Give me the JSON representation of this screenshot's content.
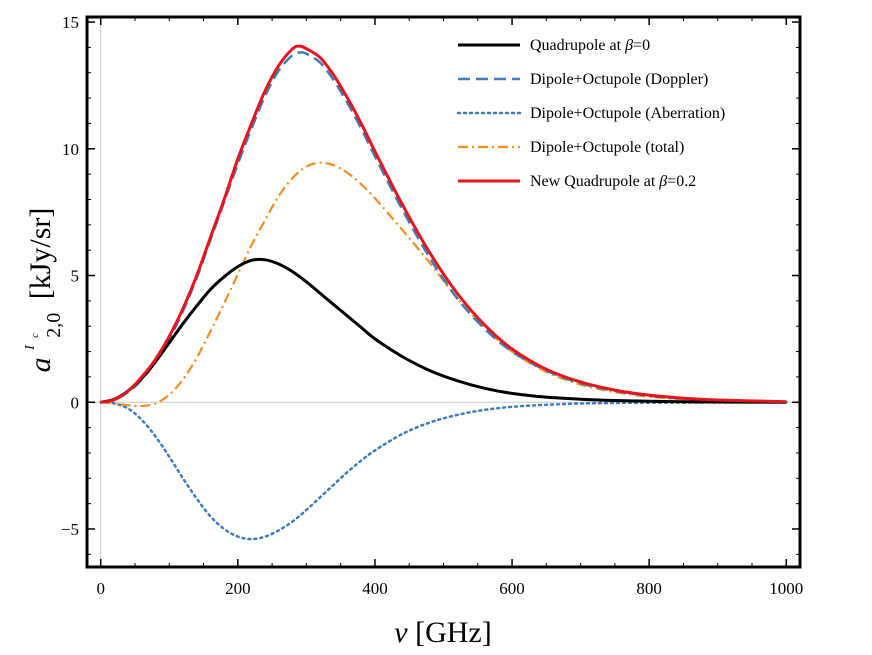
{
  "chart_data": {
    "type": "line",
    "title": "",
    "xlabel": "ν [GHz]",
    "ylabel": "a^{I_c}_{2,0} [kJy/sr]",
    "ylabel_parts": {
      "symbol": "a",
      "sup": "I",
      "sup_sub": "c",
      "sub": "2,0",
      "unit": "[kJy/sr]"
    },
    "xlabel_parts": {
      "symbol": "ν",
      "unit": "[GHz]"
    },
    "xlim": [
      -20,
      1020
    ],
    "ylim": [
      -6.5,
      15.2
    ],
    "xticks": [
      0,
      200,
      400,
      600,
      800,
      1000
    ],
    "xtick_labels": [
      "0",
      "200",
      "400",
      "600",
      "800",
      "1000"
    ],
    "yticks": [
      -5,
      0,
      5,
      10,
      15
    ],
    "ytick_labels": [
      "−5",
      "0",
      "5",
      "10",
      "15"
    ],
    "grid": false,
    "legend_position": "top-right",
    "series": [
      {
        "name": "Quadrupole at β=0",
        "legend": {
          "prefix": "Quadrupole at ",
          "greek": "β",
          "suffix": "=0"
        },
        "color": "#000000",
        "dash": "solid",
        "x": [
          0,
          20,
          40,
          60,
          80,
          100,
          120,
          140,
          160,
          180,
          200,
          220,
          240,
          260,
          280,
          300,
          320,
          340,
          360,
          380,
          400,
          440,
          480,
          520,
          560,
          600,
          650,
          700,
          750,
          800,
          850,
          900,
          1000
        ],
        "y": [
          0,
          0.12,
          0.45,
          0.95,
          1.6,
          2.35,
          3.1,
          3.8,
          4.45,
          4.95,
          5.35,
          5.6,
          5.62,
          5.45,
          5.15,
          4.75,
          4.3,
          3.85,
          3.4,
          2.95,
          2.5,
          1.8,
          1.25,
          0.85,
          0.55,
          0.35,
          0.2,
          0.12,
          0.07,
          0.04,
          0.02,
          0.01,
          0.0
        ]
      },
      {
        "name": "Dipole+Octupole (Doppler)",
        "legend": {
          "prefix": "Dipole+Octupole (Doppler)",
          "greek": "",
          "suffix": ""
        },
        "color": "#3F7CB8",
        "dash": "dashed",
        "x": [
          0,
          20,
          40,
          60,
          80,
          100,
          120,
          140,
          160,
          180,
          200,
          220,
          240,
          260,
          280,
          290,
          300,
          320,
          340,
          360,
          380,
          400,
          440,
          480,
          520,
          560,
          600,
          650,
          700,
          750,
          800,
          850,
          900,
          1000
        ],
        "y": [
          0,
          0.1,
          0.4,
          0.9,
          1.6,
          2.5,
          3.6,
          4.9,
          6.4,
          7.9,
          9.4,
          10.8,
          12.1,
          13.1,
          13.7,
          13.8,
          13.75,
          13.4,
          12.7,
          11.8,
          10.8,
          9.7,
          7.6,
          5.7,
          4.1,
          2.9,
          2.0,
          1.25,
          0.75,
          0.45,
          0.25,
          0.14,
          0.08,
          0.02
        ]
      },
      {
        "name": "Dipole+Octupole (Aberration)",
        "legend": {
          "prefix": "Dipole+Octupole (Aberration)",
          "greek": "",
          "suffix": ""
        },
        "color": "#3F7CB8",
        "dash": "dotted",
        "x": [
          0,
          20,
          40,
          60,
          80,
          100,
          120,
          140,
          160,
          180,
          200,
          220,
          240,
          260,
          280,
          300,
          320,
          340,
          360,
          380,
          400,
          440,
          480,
          520,
          560,
          600,
          650,
          700,
          750,
          800,
          900,
          1000
        ],
        "y": [
          0,
          -0.05,
          -0.25,
          -0.7,
          -1.35,
          -2.15,
          -3.0,
          -3.8,
          -4.5,
          -5.0,
          -5.3,
          -5.4,
          -5.3,
          -5.05,
          -4.7,
          -4.25,
          -3.75,
          -3.25,
          -2.75,
          -2.3,
          -1.9,
          -1.25,
          -0.8,
          -0.5,
          -0.3,
          -0.18,
          -0.1,
          -0.05,
          -0.03,
          -0.02,
          -0.01,
          0.0
        ]
      },
      {
        "name": "Dipole+Octupole (total)",
        "legend": {
          "prefix": "Dipole+Octupole (total)",
          "greek": "",
          "suffix": ""
        },
        "color": "#F28E1C",
        "dash": "dashdot",
        "x": [
          0,
          20,
          40,
          60,
          80,
          100,
          120,
          140,
          160,
          180,
          200,
          220,
          240,
          260,
          280,
          300,
          320,
          340,
          360,
          380,
          400,
          440,
          480,
          520,
          560,
          600,
          650,
          700,
          750,
          800,
          850,
          900,
          1000
        ],
        "y": [
          0,
          -0.05,
          -0.12,
          -0.15,
          -0.05,
          0.3,
          0.9,
          1.75,
          2.8,
          3.9,
          5.05,
          6.2,
          7.2,
          8.15,
          8.85,
          9.3,
          9.45,
          9.35,
          9.05,
          8.6,
          8.05,
          6.8,
          5.5,
          4.1,
          2.95,
          2.0,
          1.2,
          0.7,
          0.4,
          0.22,
          0.12,
          0.07,
          0.02
        ]
      },
      {
        "name": "New Quadrupole at β=0.2",
        "legend": {
          "prefix": "New Quadrupole at ",
          "greek": "β",
          "suffix": "=0.2"
        },
        "color": "#E8141C",
        "dash": "solid",
        "x": [
          0,
          20,
          40,
          60,
          80,
          100,
          120,
          140,
          160,
          180,
          200,
          220,
          240,
          260,
          280,
          290,
          300,
          320,
          340,
          360,
          380,
          400,
          440,
          480,
          520,
          560,
          600,
          650,
          700,
          750,
          800,
          850,
          900,
          1000
        ],
        "y": [
          0,
          0.1,
          0.45,
          1.0,
          1.7,
          2.6,
          3.7,
          5.0,
          6.5,
          8.0,
          9.6,
          11.0,
          12.3,
          13.3,
          13.95,
          14.05,
          13.95,
          13.6,
          12.9,
          12.0,
          11.0,
          9.9,
          7.8,
          5.9,
          4.3,
          3.05,
          2.1,
          1.3,
          0.8,
          0.48,
          0.28,
          0.16,
          0.09,
          0.02
        ]
      }
    ]
  }
}
